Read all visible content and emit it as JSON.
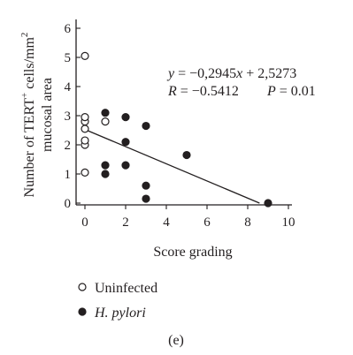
{
  "chart_data": {
    "type": "scatter",
    "xlabel": "Score grading",
    "ylabel_line1": "Number of TERT",
    "ylabel_sup": "+",
    "ylabel_line1_tail": " cells/mm",
    "ylabel_sup2": "2",
    "ylabel_line2": "mucosal area",
    "xlim": [
      0,
      10
    ],
    "ylim": [
      0,
      6
    ],
    "x_ticks": [
      "0",
      "2",
      "4",
      "6",
      "8",
      "10"
    ],
    "y_ticks": [
      "0",
      "1",
      "2",
      "3",
      "4",
      "5",
      "6"
    ],
    "series": [
      {
        "name": "Uninfected",
        "marker": "open-circle",
        "points": [
          [
            0,
            1.05
          ],
          [
            0,
            2.0
          ],
          [
            0,
            2.15
          ],
          [
            0,
            2.55
          ],
          [
            0,
            2.8
          ],
          [
            0,
            2.95
          ],
          [
            0,
            5.05
          ],
          [
            1,
            2.8
          ]
        ]
      },
      {
        "name": "H. pylori",
        "marker": "filled-circle",
        "points": [
          [
            1,
            1.0
          ],
          [
            1,
            1.3
          ],
          [
            1,
            3.1
          ],
          [
            2,
            1.3
          ],
          [
            2,
            2.1
          ],
          [
            2,
            2.95
          ],
          [
            3,
            0.15
          ],
          [
            3,
            0.6
          ],
          [
            3,
            2.65
          ],
          [
            5,
            1.65
          ],
          [
            9,
            0.0
          ]
        ]
      }
    ],
    "regression": {
      "slope": -0.2945,
      "intercept": 2.5273,
      "x_range": [
        0,
        8.58
      ]
    },
    "annotation": {
      "equation": "y = −0,2945x + 2,5273",
      "r_text": "R = −0.5412",
      "p_text": "P = 0.01"
    },
    "legend": {
      "placement": "bottom-left",
      "items": [
        {
          "label": "Uninfected",
          "marker": "open-circle"
        },
        {
          "label": "H. pylori",
          "marker": "filled-circle"
        }
      ]
    },
    "panel_label": "(e)",
    "grid": false
  }
}
